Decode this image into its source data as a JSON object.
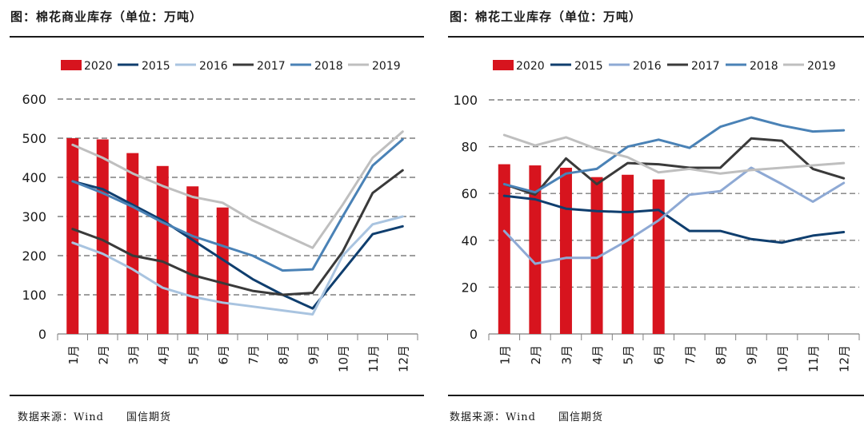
{
  "charts": [
    {
      "title": "图：棉花商业库存（单位：万吨）",
      "source": "数据来源：Wind",
      "source_org": "国信期货"
    },
    {
      "title": "图：棉花工业库存（单位：万吨）",
      "source": "数据来源：Wind",
      "source_org": "国信期货"
    }
  ],
  "colors": {
    "2020": "#d7141e",
    "2015": "#0f3e6e",
    "2016": "#a9c4e0",
    "2017": "#3a3a3a",
    "2018": "#4a82b6",
    "2019": "#bfbfbf",
    "2016_right": "#8ea9d4"
  },
  "chart_data": [
    {
      "type": "bar+line",
      "title": "图：棉花商业库存（单位：万吨）",
      "categories": [
        "1月",
        "2月",
        "3月",
        "4月",
        "5月",
        "6月",
        "7月",
        "8月",
        "9月",
        "10月",
        "11月",
        "12月"
      ],
      "ylim": [
        0,
        600
      ],
      "yticks": [
        "0",
        "100",
        "200",
        "300",
        "400",
        "500",
        "600"
      ],
      "grid": true,
      "legend_position": "top",
      "bar_series": {
        "name": "2020",
        "values": [
          500,
          497,
          462,
          429,
          377,
          323
        ]
      },
      "series": [
        {
          "name": "2015",
          "values": [
            390,
            370,
            330,
            290,
            240,
            190,
            140,
            100,
            65,
            160,
            255,
            275
          ]
        },
        {
          "name": "2016",
          "values": [
            233,
            205,
            165,
            118,
            95,
            80,
            70,
            60,
            50,
            200,
            280,
            300
          ]
        },
        {
          "name": "2017",
          "values": [
            268,
            240,
            200,
            185,
            150,
            130,
            110,
            100,
            105,
            210,
            360,
            418
          ]
        },
        {
          "name": "2018",
          "values": [
            390,
            360,
            325,
            285,
            250,
            225,
            200,
            162,
            165,
            300,
            430,
            497
          ]
        },
        {
          "name": "2019",
          "values": [
            483,
            450,
            410,
            378,
            350,
            335,
            290,
            255,
            220,
            330,
            450,
            517
          ]
        }
      ]
    },
    {
      "type": "bar+line",
      "title": "图：棉花工业库存（单位：万吨）",
      "categories": [
        "1月",
        "2月",
        "3月",
        "4月",
        "5月",
        "6月",
        "7月",
        "8月",
        "9月",
        "10月",
        "11月",
        "12月"
      ],
      "ylim": [
        0,
        100
      ],
      "yticks": [
        "0",
        "20",
        "40",
        "60",
        "80",
        "100"
      ],
      "grid": true,
      "legend_position": "top",
      "bar_series": {
        "name": "2020",
        "values": [
          72.5,
          72,
          71,
          67,
          68,
          66
        ]
      },
      "series": [
        {
          "name": "2015",
          "values": [
            59,
            57.5,
            53.5,
            52.5,
            52,
            53,
            44,
            44,
            40.5,
            39,
            42,
            43.5
          ]
        },
        {
          "name": "2016",
          "values": [
            44,
            30,
            32.5,
            32.5,
            40,
            48.5,
            59.5,
            61,
            71,
            64,
            56.5,
            64.5
          ]
        },
        {
          "name": "2017",
          "values": [
            64,
            59.5,
            75,
            64,
            73,
            72.5,
            71,
            71,
            83.5,
            82.5,
            70.5,
            66.5
          ]
        },
        {
          "name": "2018",
          "values": [
            64,
            60.5,
            68.5,
            70.5,
            80,
            83,
            79.5,
            88.5,
            92.5,
            89,
            86.5,
            87
          ]
        },
        {
          "name": "2019",
          "values": [
            85,
            80.5,
            84,
            79,
            75.5,
            69,
            70.5,
            68.5,
            70,
            71,
            72,
            73
          ]
        }
      ]
    }
  ]
}
